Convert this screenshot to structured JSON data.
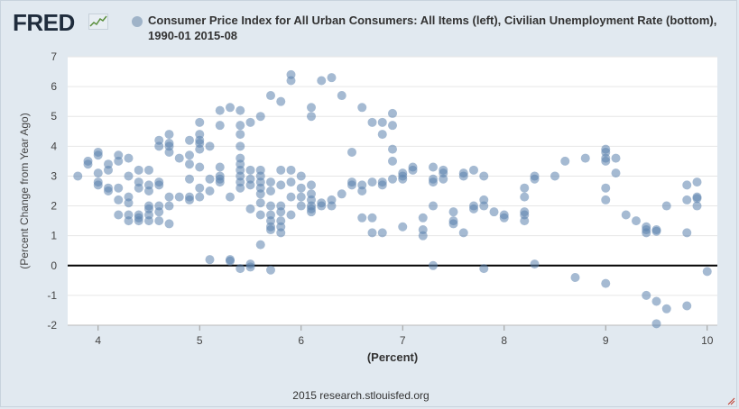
{
  "brand": {
    "logo_text": "FRED",
    "logo_icon": "line-chart-icon"
  },
  "source_text": "2015 research.stlouisfed.org",
  "colors": {
    "marker": "#5b82ad",
    "zero_line": "#000000",
    "grid": "#e6e6e6"
  },
  "chart_data": {
    "type": "scatter",
    "title": "Consumer Price Index for All Urban Consumers: All Items (left), Civilian Unemployment Rate (bottom), 1990-01 2015-08",
    "series_name": "Consumer Price Index for All Urban Consumers: All Items (left), Civilian Unemployment Rate (bottom), 1990-01 2015-08",
    "xlabel": "(Percent)",
    "ylabel": "(Percent Change from Year Ago)",
    "xlim": [
      3.7,
      10.1
    ],
    "ylim": [
      -2,
      7
    ],
    "xticks": [
      4,
      5,
      6,
      7,
      8,
      9,
      10
    ],
    "yticks": [
      -2,
      -1,
      0,
      1,
      2,
      3,
      4,
      5,
      6,
      7
    ],
    "grid": true,
    "points": [
      [
        3.8,
        3.0
      ],
      [
        3.9,
        3.4
      ],
      [
        3.9,
        3.5
      ],
      [
        4.0,
        3.8
      ],
      [
        4.0,
        3.7
      ],
      [
        4.0,
        3.1
      ],
      [
        4.0,
        2.8
      ],
      [
        4.0,
        2.7
      ],
      [
        4.1,
        3.4
      ],
      [
        4.1,
        3.2
      ],
      [
        4.1,
        2.6
      ],
      [
        4.1,
        2.5
      ],
      [
        4.2,
        3.7
      ],
      [
        4.2,
        3.5
      ],
      [
        4.2,
        2.6
      ],
      [
        4.2,
        2.2
      ],
      [
        4.2,
        1.7
      ],
      [
        4.3,
        3.6
      ],
      [
        4.3,
        3.0
      ],
      [
        4.3,
        2.3
      ],
      [
        4.3,
        2.1
      ],
      [
        4.3,
        1.7
      ],
      [
        4.3,
        1.5
      ],
      [
        4.4,
        3.2
      ],
      [
        4.4,
        2.8
      ],
      [
        4.4,
        2.6
      ],
      [
        4.4,
        1.7
      ],
      [
        4.4,
        1.6
      ],
      [
        4.4,
        1.5
      ],
      [
        4.5,
        3.2
      ],
      [
        4.5,
        2.7
      ],
      [
        4.5,
        2.5
      ],
      [
        4.5,
        2.0
      ],
      [
        4.5,
        1.9
      ],
      [
        4.5,
        1.7
      ],
      [
        4.5,
        1.5
      ],
      [
        4.6,
        4.2
      ],
      [
        4.6,
        4.0
      ],
      [
        4.6,
        2.8
      ],
      [
        4.6,
        2.7
      ],
      [
        4.6,
        2.0
      ],
      [
        4.6,
        1.8
      ],
      [
        4.6,
        1.5
      ],
      [
        4.7,
        4.4
      ],
      [
        4.7,
        4.1
      ],
      [
        4.7,
        4.0
      ],
      [
        4.7,
        3.8
      ],
      [
        4.7,
        2.3
      ],
      [
        4.7,
        2.0
      ],
      [
        4.7,
        1.4
      ],
      [
        4.8,
        3.6
      ],
      [
        4.8,
        2.3
      ],
      [
        4.9,
        4.2
      ],
      [
        4.9,
        3.7
      ],
      [
        4.9,
        3.4
      ],
      [
        4.9,
        2.9
      ],
      [
        4.9,
        2.3
      ],
      [
        4.9,
        2.2
      ],
      [
        5.0,
        4.8
      ],
      [
        5.0,
        4.4
      ],
      [
        5.0,
        4.2
      ],
      [
        5.0,
        4.1
      ],
      [
        5.0,
        3.9
      ],
      [
        5.0,
        3.3
      ],
      [
        5.0,
        2.6
      ],
      [
        5.0,
        2.3
      ],
      [
        5.1,
        4.0
      ],
      [
        5.1,
        2.9
      ],
      [
        5.1,
        2.5
      ],
      [
        5.1,
        0.2
      ],
      [
        5.2,
        5.2
      ],
      [
        5.2,
        4.7
      ],
      [
        5.2,
        3.3
      ],
      [
        5.2,
        3.0
      ],
      [
        5.2,
        2.9
      ],
      [
        5.2,
        2.8
      ],
      [
        5.3,
        5.3
      ],
      [
        5.3,
        2.3
      ],
      [
        5.3,
        0.2
      ],
      [
        5.3,
        0.15
      ],
      [
        5.4,
        5.2
      ],
      [
        5.4,
        4.7
      ],
      [
        5.4,
        4.4
      ],
      [
        5.4,
        4.0
      ],
      [
        5.4,
        3.6
      ],
      [
        5.4,
        3.4
      ],
      [
        5.4,
        3.2
      ],
      [
        5.4,
        3.0
      ],
      [
        5.4,
        2.8
      ],
      [
        5.4,
        2.6
      ],
      [
        5.4,
        -0.1
      ],
      [
        5.5,
        4.8
      ],
      [
        5.5,
        3.2
      ],
      [
        5.5,
        2.9
      ],
      [
        5.5,
        2.7
      ],
      [
        5.5,
        1.9
      ],
      [
        5.5,
        0.05
      ],
      [
        5.5,
        -0.05
      ],
      [
        5.6,
        5.0
      ],
      [
        5.6,
        3.2
      ],
      [
        5.6,
        3.0
      ],
      [
        5.6,
        2.8
      ],
      [
        5.6,
        2.6
      ],
      [
        5.6,
        2.4
      ],
      [
        5.6,
        2.1
      ],
      [
        5.6,
        1.7
      ],
      [
        5.6,
        0.7
      ],
      [
        5.7,
        5.7
      ],
      [
        5.7,
        2.8
      ],
      [
        5.7,
        2.5
      ],
      [
        5.7,
        2.0
      ],
      [
        5.7,
        1.7
      ],
      [
        5.7,
        1.5
      ],
      [
        5.7,
        1.3
      ],
      [
        5.7,
        1.2
      ],
      [
        5.7,
        -0.15
      ],
      [
        5.8,
        5.5
      ],
      [
        5.8,
        3.2
      ],
      [
        5.8,
        2.7
      ],
      [
        5.8,
        2.0
      ],
      [
        5.8,
        1.8
      ],
      [
        5.8,
        1.5
      ],
      [
        5.8,
        1.3
      ],
      [
        5.8,
        1.1
      ],
      [
        5.9,
        6.4
      ],
      [
        5.9,
        6.2
      ],
      [
        5.9,
        3.2
      ],
      [
        5.9,
        2.8
      ],
      [
        5.9,
        2.3
      ],
      [
        5.9,
        1.7
      ],
      [
        6.0,
        3.0
      ],
      [
        6.0,
        2.6
      ],
      [
        6.0,
        2.3
      ],
      [
        6.0,
        2.0
      ],
      [
        6.1,
        5.3
      ],
      [
        6.1,
        5.0
      ],
      [
        6.1,
        2.7
      ],
      [
        6.1,
        2.4
      ],
      [
        6.1,
        2.2
      ],
      [
        6.1,
        2.0
      ],
      [
        6.1,
        1.9
      ],
      [
        6.1,
        1.8
      ],
      [
        6.2,
        6.2
      ],
      [
        6.2,
        2.1
      ],
      [
        6.2,
        2.0
      ],
      [
        6.3,
        6.3
      ],
      [
        6.3,
        2.2
      ],
      [
        6.3,
        2.0
      ],
      [
        6.4,
        5.7
      ],
      [
        6.4,
        2.4
      ],
      [
        6.5,
        3.8
      ],
      [
        6.5,
        2.8
      ],
      [
        6.5,
        2.7
      ],
      [
        6.6,
        5.3
      ],
      [
        6.6,
        2.7
      ],
      [
        6.6,
        2.5
      ],
      [
        6.6,
        1.6
      ],
      [
        6.7,
        4.8
      ],
      [
        6.7,
        2.8
      ],
      [
        6.7,
        1.6
      ],
      [
        6.7,
        1.1
      ],
      [
        6.8,
        4.8
      ],
      [
        6.8,
        4.4
      ],
      [
        6.8,
        2.8
      ],
      [
        6.8,
        2.7
      ],
      [
        6.8,
        1.1
      ],
      [
        6.9,
        5.1
      ],
      [
        6.9,
        4.7
      ],
      [
        6.9,
        3.9
      ],
      [
        6.9,
        3.5
      ],
      [
        6.9,
        2.9
      ],
      [
        7.0,
        3.1
      ],
      [
        7.0,
        3.0
      ],
      [
        7.0,
        2.9
      ],
      [
        7.0,
        1.3
      ],
      [
        7.1,
        3.3
      ],
      [
        7.1,
        3.2
      ],
      [
        7.2,
        1.6
      ],
      [
        7.2,
        1.2
      ],
      [
        7.2,
        1.0
      ],
      [
        7.3,
        3.3
      ],
      [
        7.3,
        2.9
      ],
      [
        7.3,
        2.8
      ],
      [
        7.3,
        2.0
      ],
      [
        7.3,
        0.0
      ],
      [
        7.4,
        3.2
      ],
      [
        7.4,
        3.1
      ],
      [
        7.4,
        2.9
      ],
      [
        7.5,
        1.8
      ],
      [
        7.5,
        1.5
      ],
      [
        7.5,
        1.4
      ],
      [
        7.6,
        3.1
      ],
      [
        7.6,
        3.0
      ],
      [
        7.6,
        1.1
      ],
      [
        7.7,
        3.2
      ],
      [
        7.7,
        2.0
      ],
      [
        7.7,
        1.9
      ],
      [
        7.8,
        3.0
      ],
      [
        7.8,
        2.2
      ],
      [
        7.8,
        2.0
      ],
      [
        7.8,
        -0.1
      ],
      [
        7.9,
        1.8
      ],
      [
        8.0,
        1.7
      ],
      [
        8.0,
        1.6
      ],
      [
        8.2,
        2.6
      ],
      [
        8.2,
        2.3
      ],
      [
        8.2,
        1.8
      ],
      [
        8.2,
        1.7
      ],
      [
        8.2,
        1.5
      ],
      [
        8.3,
        3.0
      ],
      [
        8.3,
        2.9
      ],
      [
        8.3,
        0.05
      ],
      [
        8.5,
        3.0
      ],
      [
        8.6,
        3.5
      ],
      [
        8.7,
        -0.4
      ],
      [
        8.8,
        3.6
      ],
      [
        9.0,
        3.9
      ],
      [
        9.0,
        3.8
      ],
      [
        9.0,
        3.6
      ],
      [
        9.0,
        3.5
      ],
      [
        9.0,
        2.6
      ],
      [
        9.0,
        2.2
      ],
      [
        9.0,
        -0.6
      ],
      [
        9.1,
        3.6
      ],
      [
        9.1,
        3.1
      ],
      [
        9.2,
        1.7
      ],
      [
        9.3,
        1.5
      ],
      [
        9.4,
        1.3
      ],
      [
        9.4,
        1.2
      ],
      [
        9.4,
        1.1
      ],
      [
        9.4,
        -1.0
      ],
      [
        9.5,
        1.2
      ],
      [
        9.5,
        1.15
      ],
      [
        9.5,
        -1.2
      ],
      [
        9.5,
        -1.95
      ],
      [
        9.6,
        2.0
      ],
      [
        9.6,
        -1.45
      ],
      [
        9.8,
        2.7
      ],
      [
        9.8,
        2.2
      ],
      [
        9.8,
        1.1
      ],
      [
        9.8,
        -1.35
      ],
      [
        9.9,
        2.8
      ],
      [
        9.9,
        2.3
      ],
      [
        9.9,
        2.25
      ],
      [
        9.9,
        2.0
      ],
      [
        10.0,
        -0.2
      ]
    ]
  }
}
